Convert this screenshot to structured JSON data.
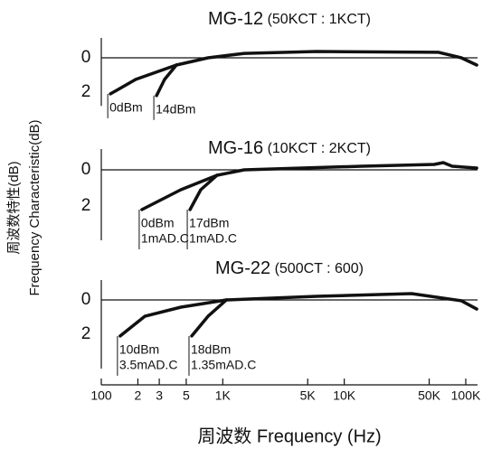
{
  "shared": {
    "x_label": "周波数  Frequency (Hz)",
    "y_label": [
      "周波数特性(dB)",
      "Frequency Characteristic(dB)"
    ],
    "log_x": true,
    "xlim": [
      100,
      125000
    ],
    "xticks": [
      100,
      {
        "value": 200,
        "label": "2"
      },
      {
        "value": 300,
        "label": "3"
      },
      {
        "value": 500,
        "label": "5"
      },
      {
        "value": 1000,
        "label": "1K"
      },
      {
        "value": 5000,
        "label": "5K"
      },
      {
        "value": 10000,
        "label": "10K"
      },
      {
        "value": 50000,
        "label": "50K"
      },
      {
        "value": 100000,
        "label": "100K"
      }
    ]
  },
  "chart_data": [
    {
      "type": "line",
      "title": "MG-12",
      "subtitle": "(50KCT : 1KCT)",
      "y_inverted": true,
      "ylim": [
        -1,
        2.8
      ],
      "yticks": [
        0,
        2
      ],
      "reference_line": 0,
      "color": "#111111",
      "series": [
        {
          "name": "0dBm",
          "x": [
            119,
            192,
            415,
            756,
            1500,
            5900,
            59800,
            91900,
            123000
          ],
          "values": [
            2.1,
            1.26,
            0.42,
            0,
            -0.26,
            -0.37,
            -0.32,
            0,
            0.42
          ]
        },
        {
          "name": "14dBm",
          "x": [
            285,
            332,
            415
          ],
          "values": [
            2.2,
            1.26,
            0.42
          ]
        }
      ]
    },
    {
      "type": "line",
      "title": "MG-16",
      "subtitle": "(10KCT : 2KCT)",
      "y_inverted": true,
      "ylim": [
        -1,
        3.9
      ],
      "yticks": [
        0,
        2
      ],
      "reference_line": 0,
      "color": "#111111",
      "series": [
        {
          "name": "0dBm",
          "note": "1mAD.C",
          "x": [
            216,
            452,
            897,
            1500,
            13900,
            55000,
            65300,
            77400,
            123000
          ],
          "values": [
            2.2,
            1.1,
            0.3,
            0,
            -0.2,
            -0.3,
            -0.4,
            -0.2,
            -0.1
          ]
        },
        {
          "name": "17dBm",
          "note": "1mAD.C",
          "x": [
            537,
            659,
            897
          ],
          "values": [
            2.2,
            1.1,
            0.3
          ]
        }
      ]
    },
    {
      "type": "line",
      "title": "MG-22",
      "subtitle": "(500CT : 600)",
      "y_inverted": true,
      "ylim": [
        -1,
        4.0
      ],
      "yticks": [
        0,
        2
      ],
      "reference_line": 0,
      "color": "#111111",
      "series": [
        {
          "name": "10dBm",
          "note": "3.5mAD.C",
          "x": [
            143,
            228,
            452,
            1070,
            5900,
            35800,
            91900,
            123000
          ],
          "values": [
            2.1,
            0.95,
            0.42,
            0,
            -0.21,
            -0.37,
            0.05,
            0.53
          ]
        },
        {
          "name": "18dBm",
          "note": "1.35mAD.C",
          "x": [
            555,
            756,
            1070
          ],
          "values": [
            2.1,
            0.95,
            0
          ]
        }
      ]
    }
  ]
}
